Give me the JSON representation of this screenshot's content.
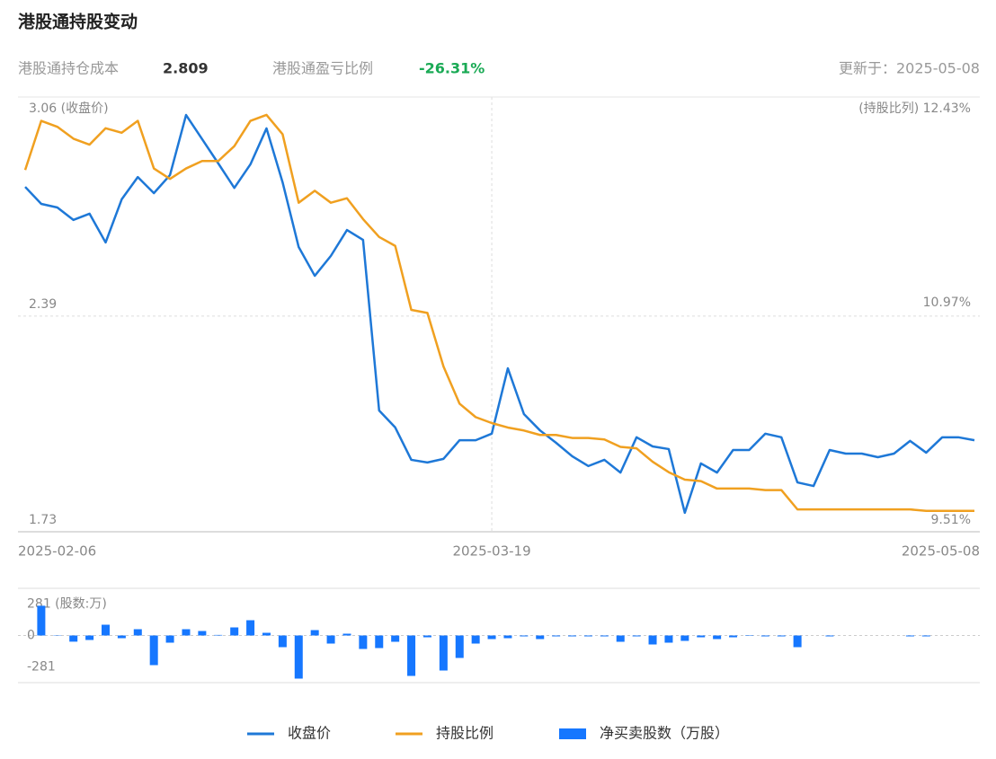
{
  "header": {
    "title": "港股通持股变动"
  },
  "stats": {
    "cost_label": "港股通持仓成本",
    "cost_value": "2.809",
    "pnl_label": "港股通盈亏比例",
    "pnl_value": "-26.31%",
    "updated": "更新于：2025-05-08"
  },
  "chart_data": [
    {
      "type": "line",
      "categories": [
        "2025-02-06",
        null,
        null,
        null,
        null,
        null,
        null,
        null,
        null,
        null,
        null,
        null,
        null,
        null,
        null,
        null,
        null,
        null,
        null,
        null,
        null,
        null,
        null,
        null,
        null,
        null,
        null,
        null,
        null,
        "2025-03-19",
        null,
        null,
        null,
        null,
        null,
        null,
        null,
        null,
        null,
        null,
        null,
        null,
        null,
        null,
        null,
        null,
        null,
        null,
        null,
        null,
        null,
        null,
        null,
        null,
        null,
        null,
        null,
        null,
        null,
        "2025-05-08"
      ],
      "series": [
        {
          "name": "收盘价",
          "color": "#1e78d7",
          "values": [
            2.785,
            2.733,
            2.722,
            2.684,
            2.703,
            2.615,
            2.747,
            2.815,
            2.766,
            2.821,
            3.005,
            2.931,
            2.857,
            2.782,
            2.854,
            2.964,
            2.799,
            2.601,
            2.513,
            2.574,
            2.653,
            2.623,
            2.101,
            2.049,
            1.95,
            1.942,
            1.953,
            2.01,
            2.01,
            2.03,
            2.23,
            2.09,
            2.04,
            2.002,
            1.961,
            1.931,
            1.95,
            1.911,
            2.019,
            1.991,
            1.983,
            1.788,
            1.939,
            1.911,
            1.98,
            1.98,
            2.03,
            2.019,
            1.881,
            1.87,
            1.98,
            1.969,
            1.969,
            1.958,
            1.969,
            2.008,
            1.972,
            2.019,
            2.019,
            2.01
          ]
        },
        {
          "name": "持股比例",
          "color": "#f0a020",
          "axis": "y2",
          "values": [
            11.94,
            12.27,
            12.23,
            12.15,
            12.11,
            12.22,
            12.19,
            12.27,
            11.95,
            11.88,
            11.95,
            12.0,
            12.0,
            12.1,
            12.27,
            12.31,
            12.18,
            11.72,
            11.8,
            11.72,
            11.75,
            11.61,
            11.49,
            11.43,
            11.0,
            10.98,
            10.62,
            10.37,
            10.28,
            10.24,
            10.21,
            10.19,
            10.16,
            10.16,
            10.14,
            10.14,
            10.13,
            10.08,
            10.07,
            9.98,
            9.91,
            9.86,
            9.85,
            9.8,
            9.8,
            9.8,
            9.79,
            9.79,
            9.66,
            9.66,
            9.66,
            9.66,
            9.66,
            9.66,
            9.66,
            9.66,
            9.65,
            9.65,
            9.65,
            9.65
          ]
        }
      ],
      "ylim": [
        1.73,
        3.06
      ],
      "yticks": [
        {
          "value": 3.06,
          "label": "3.06 (收盘价)"
        },
        2.39,
        1.73
      ],
      "y2lim": [
        9.51,
        12.43
      ],
      "y2ticks": [
        {
          "value": 12.43,
          "label": "(持股比列) 12.43%"
        },
        {
          "value": 10.97,
          "label": "10.97%"
        },
        {
          "value": 9.51,
          "label": "9.51%"
        }
      ]
    },
    {
      "type": "bar",
      "series": [
        {
          "name": "净买卖股数（万股）",
          "color": "#1677ff",
          "values": [
            0,
            265,
            -3,
            -55,
            -40,
            96,
            -24,
            56,
            -264,
            -64,
            56,
            40,
            5,
            72,
            136,
            24,
            -104,
            -384,
            48,
            -72,
            16,
            -120,
            -112,
            -56,
            -360,
            -16,
            -312,
            -200,
            -72,
            -32,
            -24,
            -8,
            -32,
            -8,
            -8,
            -8,
            -8,
            -56,
            -8,
            -80,
            -64,
            -48,
            -16,
            -32,
            -16,
            -4,
            -8,
            -8,
            -104,
            0,
            -8,
            0,
            0,
            0,
            0,
            -8,
            -8,
            0,
            0,
            0
          ]
        }
      ],
      "ylim": [
        -420,
        420
      ],
      "yticks": [
        {
          "value": 281,
          "label": "281 (股数:万)"
        },
        0,
        -281
      ]
    }
  ]
}
